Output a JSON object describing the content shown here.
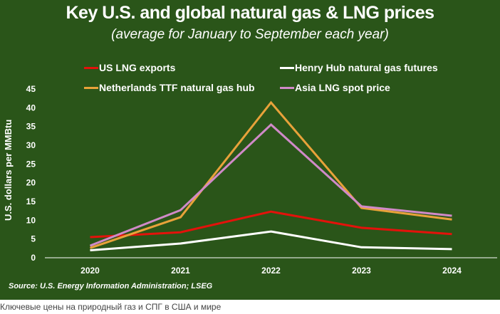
{
  "chart_data": {
    "type": "line",
    "title": "Key U.S. and global natural gas & LNG prices",
    "subtitle": "(average for January to September each year)",
    "xlabel": "",
    "ylabel": "U.S. dollars per MMBtu",
    "x": [
      "2020",
      "2021",
      "2022",
      "2023",
      "2024"
    ],
    "ylim": [
      0,
      45
    ],
    "yticks": [
      0,
      5,
      10,
      15,
      20,
      25,
      30,
      35,
      40,
      45
    ],
    "grid": false,
    "legend_position": "top",
    "series": [
      {
        "name": "US LNG exports",
        "color": "#e3120b",
        "values": [
          5.5,
          6.8,
          12.3,
          8.0,
          6.3
        ]
      },
      {
        "name": "Henry Hub natural gas futures",
        "color": "#ffffff",
        "values": [
          2.0,
          3.8,
          7.0,
          2.8,
          2.3
        ]
      },
      {
        "name": "Netherlands TTF natural gas hub",
        "color": "#e8a23a",
        "values": [
          2.6,
          10.8,
          41.4,
          13.3,
          10.2
        ]
      },
      {
        "name": "Asia LNG spot price",
        "color": "#d08ac8",
        "values": [
          3.2,
          12.7,
          35.5,
          13.7,
          11.2
        ]
      }
    ],
    "source": "Source: U.S. Energy Information Administration; LSEG"
  },
  "caption": "Ключевые цены на природный газ и СПГ в США и мире",
  "colors": {
    "background": "#2a5519",
    "axis": "#ffffff"
  }
}
